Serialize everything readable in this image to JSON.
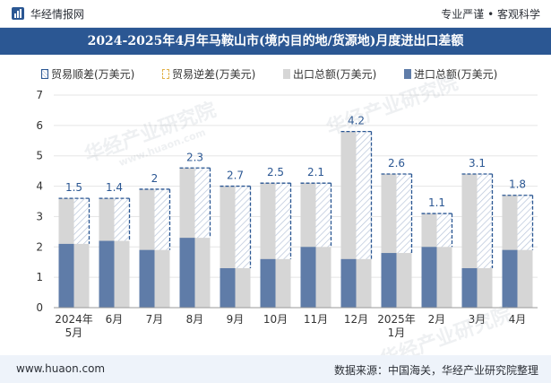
{
  "header": {
    "brand": "华经情报网",
    "tagline": "专业严谨 • 客观科学"
  },
  "watermark": {
    "text": "华经产业研究院",
    "url": "www.huaon.com"
  },
  "footer": {
    "site": "www.huaon.com",
    "source": "数据来源：中国海关，华经产业研究院整理"
  },
  "legend": [
    {
      "label": "贸易顺差(万美元)",
      "key": "surplus"
    },
    {
      "label": "贸易逆差(万美元)",
      "key": "deficit"
    },
    {
      "label": "出口总额(万美元)",
      "key": "export"
    },
    {
      "label": "进口总额(万美元)",
      "key": "import"
    }
  ],
  "colors": {
    "title_bg": "#2b5793",
    "export": "#d6d6d6",
    "import": "#5f7ca8",
    "surplus_border": "#2b5793",
    "deficit_border": "#e2b14a"
  },
  "chart_data": {
    "type": "bar",
    "title": "2024-2025年4月年马鞍山市(境内目的地/货源地)月度进出口差额",
    "categories": [
      "2024年\n5月",
      "6月",
      "7月",
      "8月",
      "9月",
      "10月",
      "11月",
      "12月",
      "2025年\n1月",
      "2月",
      "3月",
      "4月"
    ],
    "series": [
      {
        "name": "出口总额(万美元)",
        "values": [
          3.6,
          3.6,
          3.9,
          4.6,
          4.0,
          4.1,
          4.1,
          5.8,
          4.4,
          3.1,
          4.4,
          3.7
        ]
      },
      {
        "name": "进口总额(万美元)",
        "values": [
          2.1,
          2.2,
          1.9,
          2.3,
          1.3,
          1.6,
          2.0,
          1.6,
          1.8,
          2.0,
          1.3,
          1.9
        ]
      },
      {
        "name": "贸易顺差(万美元)",
        "values": [
          1.5,
          1.4,
          2.0,
          2.3,
          2.7,
          2.5,
          2.1,
          4.2,
          2.6,
          1.1,
          3.1,
          1.8
        ]
      }
    ],
    "data_labels": [
      "1.5",
      "1.4",
      "2",
      "2.3",
      "2.7",
      "2.5",
      "2.1",
      "4.2",
      "2.6",
      "1.1",
      "3.1",
      "1.8"
    ],
    "xlabel": "",
    "ylabel": "",
    "ylim": [
      0,
      7
    ],
    "yticks": [
      0,
      1,
      2,
      3,
      4,
      5,
      6,
      7
    ],
    "grid": true,
    "legend_position": "top"
  }
}
